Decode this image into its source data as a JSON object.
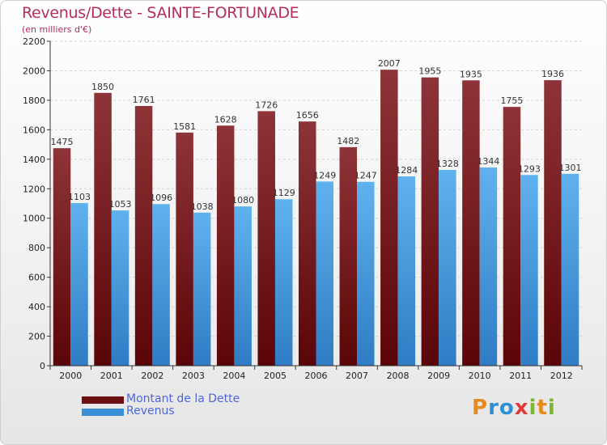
{
  "header": {
    "title": "Revenus/Dette - SAINTE-FORTUNADE",
    "subtitle": "(en milliers d'€)"
  },
  "colors": {
    "dette": "#6b0f12",
    "revenus": "#3a8fd6",
    "title": "#b42d5c",
    "legend_text": "#4d66e0"
  },
  "legend": {
    "items": [
      {
        "label": "Montant de la Dette",
        "color": "#6b0f12"
      },
      {
        "label": "Revenus",
        "color": "#3a8fd6"
      }
    ]
  },
  "logo": {
    "text": "Proxiti"
  },
  "chart_data": {
    "type": "bar",
    "categories": [
      "2000",
      "2001",
      "2002",
      "2003",
      "2004",
      "2005",
      "2006",
      "2007",
      "2008",
      "2009",
      "2010",
      "2011",
      "2012"
    ],
    "series": [
      {
        "name": "Montant de la Dette",
        "values": [
          1475,
          1850,
          1761,
          1581,
          1628,
          1726,
          1656,
          1482,
          2007,
          1955,
          1935,
          1755,
          1936
        ]
      },
      {
        "name": "Revenus",
        "values": [
          1103,
          1053,
          1096,
          1038,
          1080,
          1129,
          1249,
          1247,
          1284,
          1328,
          1344,
          1293,
          1301
        ]
      }
    ],
    "ylim": [
      0,
      2200
    ],
    "yticks": [
      0,
      200,
      400,
      600,
      800,
      1000,
      1200,
      1400,
      1600,
      1800,
      2000,
      2200
    ],
    "grid": true,
    "legend_position": "bottom-left"
  }
}
